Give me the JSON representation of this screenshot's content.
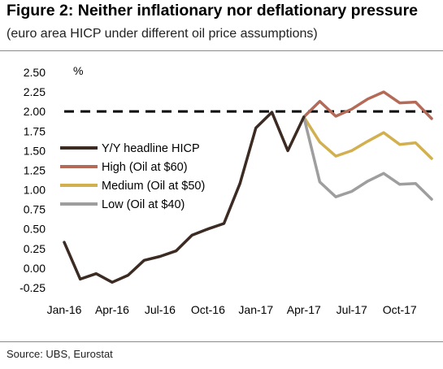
{
  "figure": {
    "title": "Figure 2: Neither inflationary nor deflationary pressure",
    "subtitle": "(euro area HICP under different oil price assumptions)",
    "source": "Source:  UBS, Eurostat"
  },
  "chart_data": {
    "type": "line",
    "unit": "%",
    "ylim": [
      -0.25,
      2.5
    ],
    "yticks": [
      "2.50",
      "2.25",
      "2.00",
      "1.75",
      "1.50",
      "1.25",
      "1.00",
      "0.75",
      "0.50",
      "0.25",
      "0.00",
      "-0.25"
    ],
    "ytick_values": [
      2.5,
      2.25,
      2.0,
      1.75,
      1.5,
      1.25,
      1.0,
      0.75,
      0.5,
      0.25,
      0.0,
      -0.25
    ],
    "xticks": [
      "Jan-16",
      "Apr-16",
      "Jul-16",
      "Oct-16",
      "Jan-17",
      "Apr-17",
      "Jul-17",
      "Oct-17"
    ],
    "xtick_index": [
      0,
      3,
      6,
      9,
      12,
      15,
      18,
      21
    ],
    "months": [
      "Jan-16",
      "Feb-16",
      "Mar-16",
      "Apr-16",
      "May-16",
      "Jun-16",
      "Jul-16",
      "Aug-16",
      "Sep-16",
      "Oct-16",
      "Nov-16",
      "Dec-16",
      "Jan-17",
      "Feb-17",
      "Mar-17",
      "Apr-17",
      "May-17",
      "Jun-17",
      "Jul-17",
      "Aug-17",
      "Sep-17",
      "Oct-17",
      "Nov-17",
      "Dec-17"
    ],
    "reference_line": {
      "y": 2.0,
      "style": "dashed",
      "color": "#000000"
    },
    "legend_position": "center-left",
    "grid": false,
    "series": [
      {
        "name": "Y/Y headline HICP",
        "color": "#3b2b22",
        "start": 0,
        "values": [
          0.33,
          -0.14,
          -0.07,
          -0.18,
          -0.09,
          0.1,
          0.15,
          0.22,
          0.42,
          0.5,
          0.57,
          1.08,
          1.79,
          1.99,
          1.5,
          1.93
        ]
      },
      {
        "name": "High (Oil at $60)",
        "color": "#b56a57",
        "start": 15,
        "values": [
          1.93,
          2.13,
          1.94,
          2.03,
          2.16,
          2.25,
          2.11,
          2.12,
          1.91
        ]
      },
      {
        "name": "Medium (Oil at $50)",
        "color": "#d2b04f",
        "start": 15,
        "values": [
          1.93,
          1.61,
          1.43,
          1.5,
          1.62,
          1.73,
          1.58,
          1.6,
          1.4
        ]
      },
      {
        "name": "Low (Oil at $40)",
        "color": "#9e9e9e",
        "start": 15,
        "values": [
          1.93,
          1.1,
          0.91,
          0.98,
          1.11,
          1.21,
          1.07,
          1.08,
          0.88
        ]
      }
    ]
  }
}
